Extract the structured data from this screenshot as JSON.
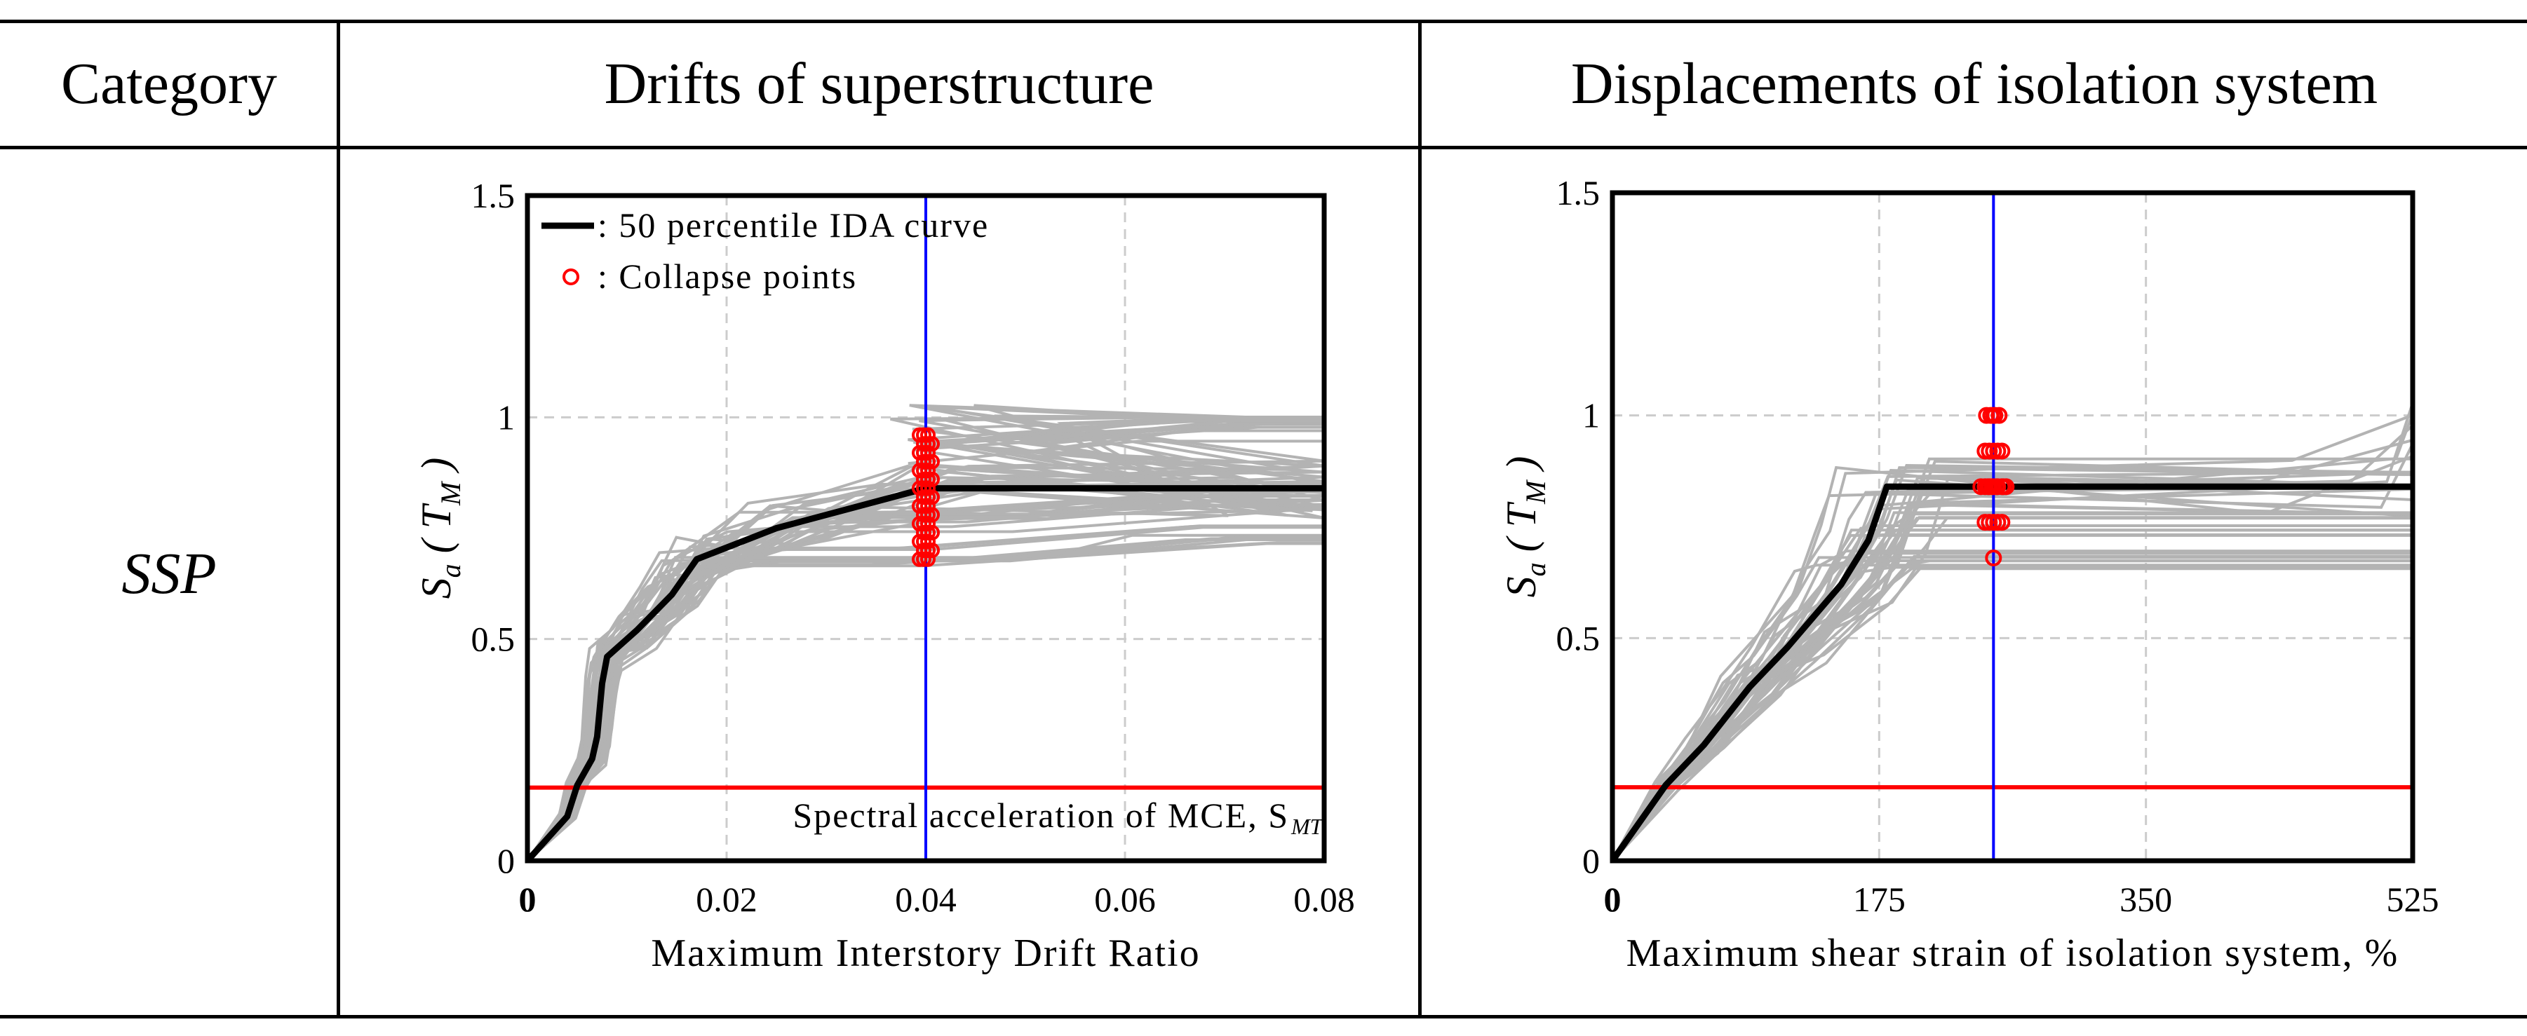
{
  "table": {
    "headers": [
      "Category",
      "Drifts of superstructure",
      "Displacements of isolation system"
    ],
    "rows": [
      {
        "category": "SSP"
      }
    ]
  },
  "chart_data": [
    {
      "type": "line",
      "xlabel": "Maximum Interstory Drift Ratio",
      "ylabel": "Sa (TM)",
      "xlim": [
        0,
        0.08
      ],
      "ylim": [
        0,
        1.5
      ],
      "xticks": [
        "0",
        "0.02",
        "0.04",
        "0.06",
        "0.08"
      ],
      "yticks": [
        "0",
        "0.5",
        "1",
        "1.5"
      ],
      "grid": true,
      "legend": {
        "placement": "top-left",
        "entries": [
          ": 50 percentile IDA curve",
          ": Collapse points"
        ]
      },
      "annotation": "Spectral acceleration of MCE, S",
      "annotation_sub": "MT",
      "mce_level": 0.165,
      "vertical_limit": 0.04,
      "median_curve": {
        "x": [
          0,
          0.004,
          0.005,
          0.0065,
          0.007,
          0.0075,
          0.008,
          0.011,
          0.0145,
          0.017,
          0.025,
          0.04,
          0.08
        ],
        "y": [
          0,
          0.1,
          0.17,
          0.23,
          0.28,
          0.4,
          0.46,
          0.52,
          0.6,
          0.68,
          0.75,
          0.84,
          0.84
        ]
      },
      "collapse_points": {
        "x": 0.04,
        "y": [
          0.68,
          0.7,
          0.72,
          0.74,
          0.76,
          0.78,
          0.8,
          0.82,
          0.84,
          0.86,
          0.88,
          0.9,
          0.92,
          0.94,
          0.96
        ]
      },
      "gray_plateau_levels": [
        0.68,
        0.76,
        0.92,
        1.0
      ],
      "colors": {
        "median": "#000000",
        "records": "#b3b3b3",
        "collapse": "#ff0000",
        "mce": "#ff0000",
        "limit": "#0000ff"
      }
    },
    {
      "type": "line",
      "xlabel": "Maximum shear strain of isolation system, %",
      "ylabel": "Sa (TM)",
      "xlim": [
        0,
        525
      ],
      "ylim": [
        0,
        1.5
      ],
      "xticks": [
        "0",
        "175",
        "350",
        "525"
      ],
      "yticks": [
        "0",
        "0.5",
        "1",
        "1.5"
      ],
      "grid": true,
      "mce_level": 0.165,
      "vertical_limit": 250,
      "median_curve": {
        "x": [
          0,
          35,
          60,
          90,
          115,
          150,
          168,
          180,
          525
        ],
        "y": [
          0,
          0.17,
          0.26,
          0.39,
          0.48,
          0.62,
          0.72,
          0.84,
          0.84
        ]
      },
      "collapse_points": {
        "x": [
          250,
          250,
          250,
          250,
          250,
          250,
          250,
          250,
          250,
          250,
          250,
          250,
          250,
          250,
          250,
          250,
          250,
          250,
          250,
          250,
          250,
          250,
          250,
          250,
          250,
          250,
          250
        ],
        "y": [
          0.68,
          0.76,
          0.76,
          0.76,
          0.76,
          0.76,
          0.84,
          0.84,
          0.84,
          0.84,
          0.84,
          0.84,
          0.84,
          0.84,
          0.84,
          0.84,
          0.84,
          0.92,
          0.92,
          0.92,
          0.92,
          0.92,
          1.0,
          1.0,
          1.0,
          1.0,
          1.0
        ],
        "dx": [
          0,
          -12,
          -6,
          0,
          6,
          12,
          -18,
          -12,
          -6,
          0,
          6,
          12,
          18,
          -8,
          4,
          14,
          -2,
          -12,
          -6,
          0,
          6,
          12,
          -10,
          -4,
          2,
          8,
          0
        ]
      },
      "gray_plateau_levels": [
        0.68,
        0.76,
        0.92,
        1.0
      ],
      "colors": {
        "median": "#000000",
        "records": "#b3b3b3",
        "collapse": "#ff0000",
        "mce": "#ff0000",
        "limit": "#0000ff"
      }
    }
  ]
}
